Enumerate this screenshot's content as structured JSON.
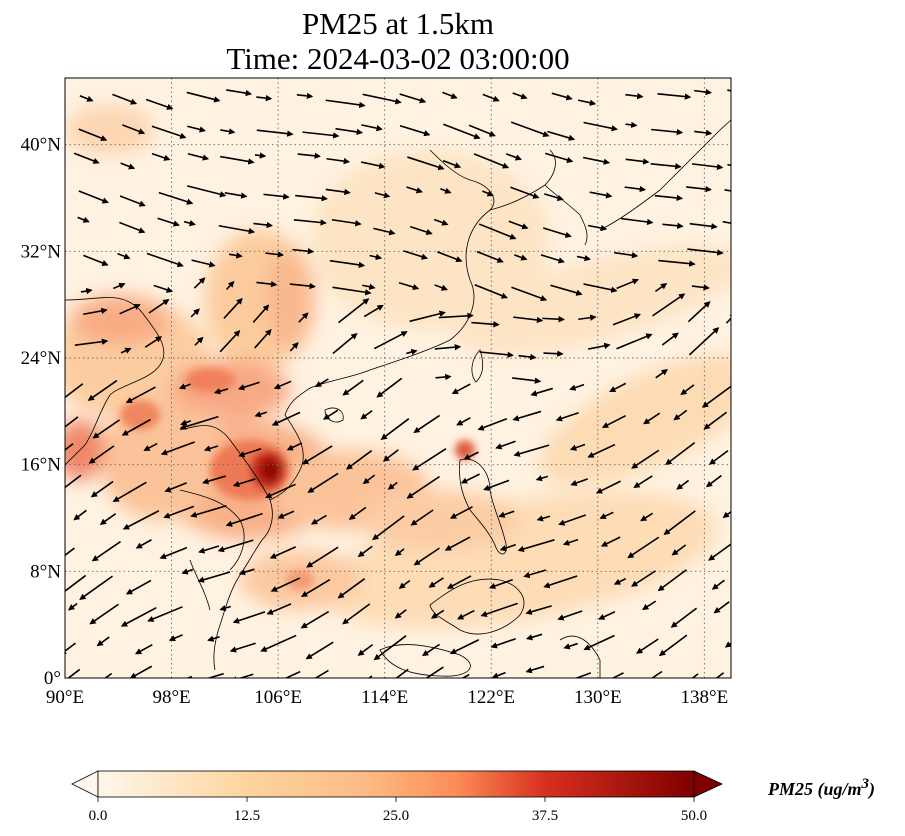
{
  "title": {
    "line1": "PM25 at 1.5km",
    "line2": "Time: 2024-03-02 03:00:00"
  },
  "map": {
    "projection": "PlateCarree",
    "lon_range": [
      90,
      140
    ],
    "lat_range": [
      0,
      45
    ],
    "x_ticks": [
      "90°E",
      "98°E",
      "106°E",
      "114°E",
      "122°E",
      "130°E",
      "138°E"
    ],
    "x_tick_values": [
      90,
      98,
      106,
      114,
      122,
      130,
      138
    ],
    "y_ticks": [
      "0°",
      "8°N",
      "16°N",
      "24°N",
      "32°N",
      "40°N"
    ],
    "y_tick_values": [
      0,
      8,
      16,
      24,
      32,
      40
    ],
    "gridlines": "dotted",
    "features": [
      "coastlines",
      "country borders"
    ]
  },
  "colorbar": {
    "cmap": "OrRd",
    "ticks": [
      "0.0",
      "12.5",
      "25.0",
      "37.5",
      "50.0"
    ],
    "tick_values": [
      0,
      12.5,
      25,
      37.5,
      50
    ],
    "extend": "both",
    "label": "PM25 (ug/m",
    "label_sup": "3",
    "label_close": ")"
  },
  "colors": {
    "low": "#fff7ec",
    "mid": "#fdbb84",
    "high": "#ef6548",
    "max": "#7f0000"
  }
}
